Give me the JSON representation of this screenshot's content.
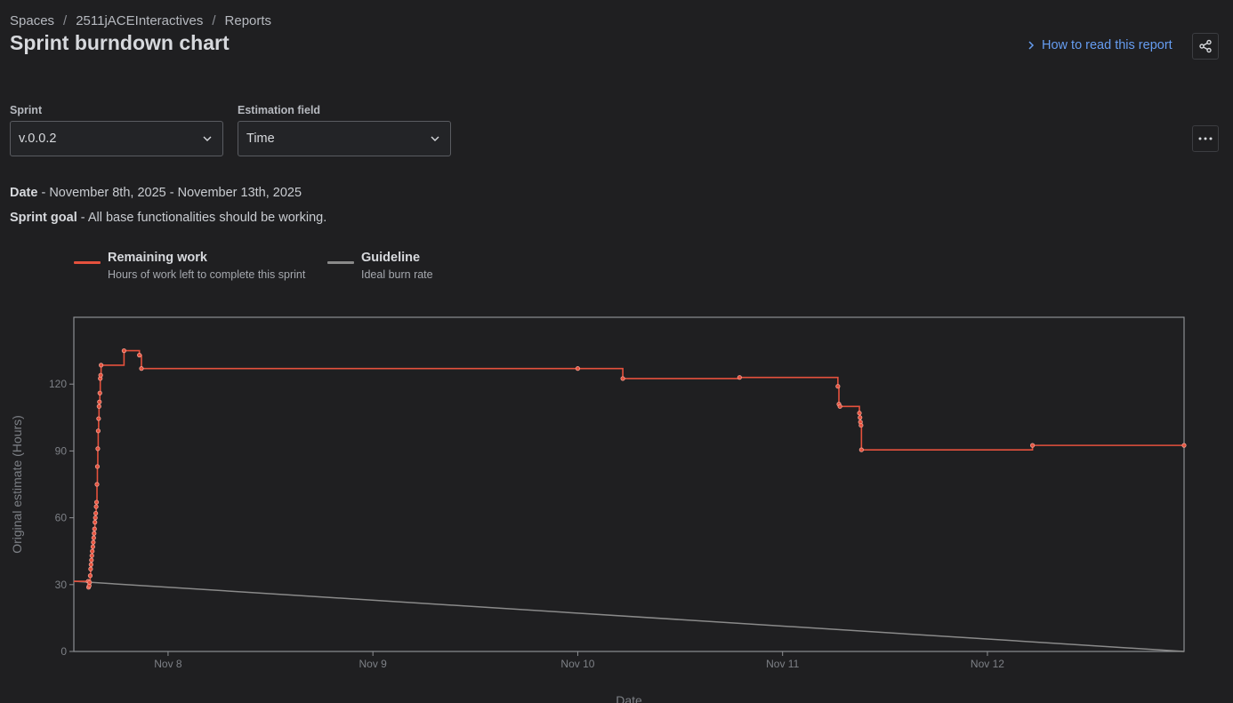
{
  "breadcrumb": {
    "items": [
      "Spaces",
      "2511jACEInteractives",
      "Reports"
    ],
    "separator": "/"
  },
  "page": {
    "title": "Sprint burndown chart",
    "how_to_read": "How to read this report"
  },
  "filters": {
    "sprint_label": "Sprint",
    "sprint_value": "v.0.0.2",
    "estimation_label": "Estimation field",
    "estimation_value": "Time"
  },
  "info": {
    "date_label": "Date",
    "date_value": " - November 8th, 2025 - November 13th, 2025",
    "goal_label": "Sprint goal",
    "goal_value": " - All base functionalities should be working."
  },
  "legend": {
    "remaining_title": "Remaining work",
    "remaining_sub": "Hours of work left to complete this sprint",
    "guideline_title": "Guideline",
    "guideline_sub": "Ideal burn rate"
  },
  "colors": {
    "accent_link": "#669df1",
    "remaining_work": "#e5513d",
    "guideline": "#8a8a8a",
    "background": "#1f1f21"
  },
  "icons": {
    "share": "share-icon",
    "more": "more-horizontal-icon",
    "chevron_right": "chevron-right-icon",
    "chevron_down": "chevron-down-icon"
  },
  "chart_data": {
    "type": "line",
    "xlabel": "Date",
    "ylabel": "Original estimate (Hours)",
    "x_ticks": [
      {
        "day": 1,
        "label": "Nov 8"
      },
      {
        "day": 2,
        "label": "Nov 9"
      },
      {
        "day": 3,
        "label": "Nov 10"
      },
      {
        "day": 4,
        "label": "Nov 11"
      },
      {
        "day": 5,
        "label": "Nov 12"
      }
    ],
    "y_ticks": [
      0,
      30,
      60,
      90,
      120
    ],
    "xlim": [
      0.54,
      5.96
    ],
    "ylim": [
      0,
      150
    ],
    "grid": false,
    "series": [
      {
        "name": "Remaining work",
        "step": true,
        "points": [
          [
            0.54,
            31.5
          ],
          [
            0.61,
            31.5
          ],
          [
            0.612,
            28.8
          ],
          [
            0.615,
            29.5
          ],
          [
            0.617,
            31
          ],
          [
            0.62,
            34
          ],
          [
            0.622,
            37
          ],
          [
            0.624,
            39
          ],
          [
            0.626,
            41
          ],
          [
            0.628,
            43
          ],
          [
            0.63,
            45
          ],
          [
            0.633,
            47
          ],
          [
            0.635,
            49
          ],
          [
            0.637,
            51
          ],
          [
            0.639,
            53
          ],
          [
            0.641,
            55
          ],
          [
            0.643,
            58
          ],
          [
            0.645,
            60
          ],
          [
            0.647,
            62
          ],
          [
            0.649,
            65
          ],
          [
            0.651,
            67
          ],
          [
            0.653,
            75
          ],
          [
            0.655,
            83
          ],
          [
            0.657,
            91
          ],
          [
            0.659,
            99
          ],
          [
            0.661,
            104.5
          ],
          [
            0.663,
            110
          ],
          [
            0.665,
            112
          ],
          [
            0.667,
            116
          ],
          [
            0.669,
            122.5
          ],
          [
            0.671,
            124
          ],
          [
            0.673,
            128.5
          ],
          [
            0.785,
            135
          ],
          [
            0.86,
            133
          ],
          [
            0.87,
            127
          ],
          [
            3.0,
            127
          ],
          [
            3.22,
            122.5
          ],
          [
            3.79,
            123
          ],
          [
            4.27,
            119
          ],
          [
            4.275,
            111
          ],
          [
            4.28,
            110
          ],
          [
            4.375,
            107
          ],
          [
            4.378,
            105
          ],
          [
            4.38,
            103
          ],
          [
            4.383,
            101.5
          ],
          [
            4.385,
            90.5
          ],
          [
            5.22,
            92.5
          ],
          [
            5.96,
            92.5
          ]
        ]
      },
      {
        "name": "Guideline",
        "points": [
          [
            0.54,
            31.5
          ],
          [
            5.96,
            0
          ]
        ]
      }
    ]
  }
}
